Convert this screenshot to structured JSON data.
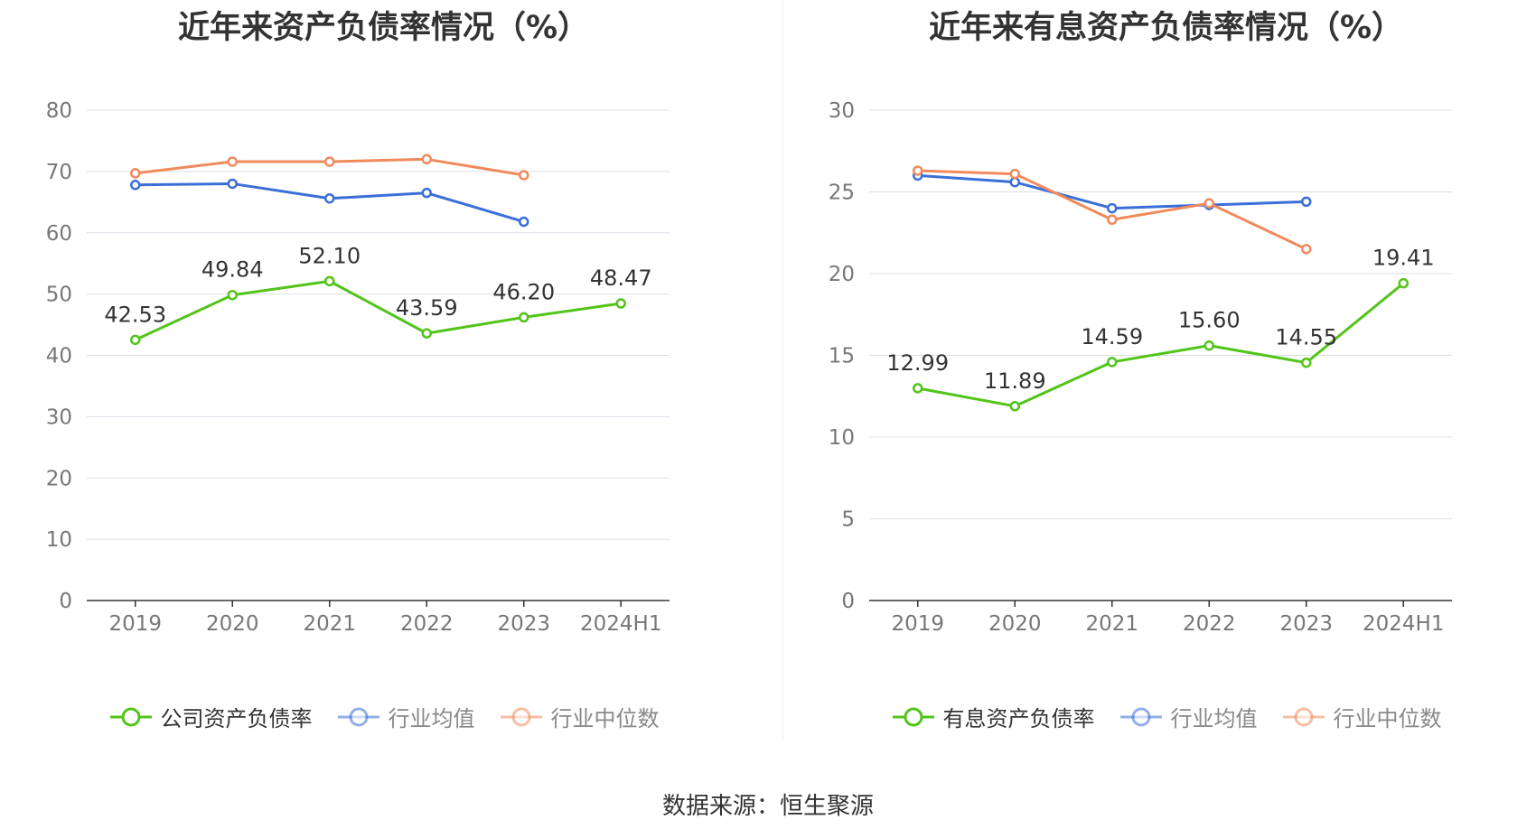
{
  "colors": {
    "company": "#52c41a",
    "avg": "#3a6fd8",
    "median": "#f08a5d",
    "grid": "#dcdfe8"
  },
  "chart_data": [
    {
      "type": "line",
      "title": "近年来资产负债率情况（%）",
      "categories": [
        "2019",
        "2020",
        "2021",
        "2022",
        "2023",
        "2024H1"
      ],
      "ylim": [
        0,
        80
      ],
      "yticks": [
        0,
        10,
        20,
        30,
        40,
        50,
        60,
        70,
        80
      ],
      "grid": true,
      "legend_position": "bottom",
      "series": [
        {
          "name": "公司资产负债率",
          "color": "#52c41a",
          "labels": true,
          "legend_faded": false,
          "values": [
            42.53,
            49.84,
            52.1,
            43.59,
            46.2,
            48.47
          ],
          "value_labels": [
            "42.53",
            "49.84",
            "52.10",
            "43.59",
            "46.20",
            "48.47"
          ]
        },
        {
          "name": "行业均值",
          "color": "#3a6fd8",
          "labels": false,
          "legend_faded": true,
          "values": [
            67.8,
            68.0,
            65.6,
            66.5,
            61.8,
            null
          ]
        },
        {
          "name": "行业中位数",
          "color": "#f08a5d",
          "labels": false,
          "legend_faded": true,
          "values": [
            69.7,
            71.6,
            71.6,
            72.0,
            69.4,
            null
          ]
        }
      ]
    },
    {
      "type": "line",
      "title": "近年来有息资产负债率情况（%）",
      "categories": [
        "2019",
        "2020",
        "2021",
        "2022",
        "2023",
        "2024H1"
      ],
      "ylim": [
        0,
        30
      ],
      "yticks": [
        0,
        5,
        10,
        15,
        20,
        25,
        30
      ],
      "grid": true,
      "legend_position": "bottom",
      "series": [
        {
          "name": "有息资产负债率",
          "color": "#52c41a",
          "labels": true,
          "legend_faded": false,
          "values": [
            12.99,
            11.89,
            14.59,
            15.6,
            14.55,
            19.41
          ],
          "value_labels": [
            "12.99",
            "11.89",
            "14.59",
            "15.60",
            "14.55",
            "19.41"
          ]
        },
        {
          "name": "行业均值",
          "color": "#3a6fd8",
          "labels": false,
          "legend_faded": true,
          "values": [
            26.0,
            25.6,
            24.0,
            24.2,
            24.4,
            null
          ]
        },
        {
          "name": "行业中位数",
          "color": "#f08a5d",
          "labels": false,
          "legend_faded": true,
          "values": [
            26.3,
            26.1,
            23.3,
            24.3,
            21.5,
            null
          ]
        }
      ]
    }
  ],
  "footer": "数据来源：恒生聚源"
}
